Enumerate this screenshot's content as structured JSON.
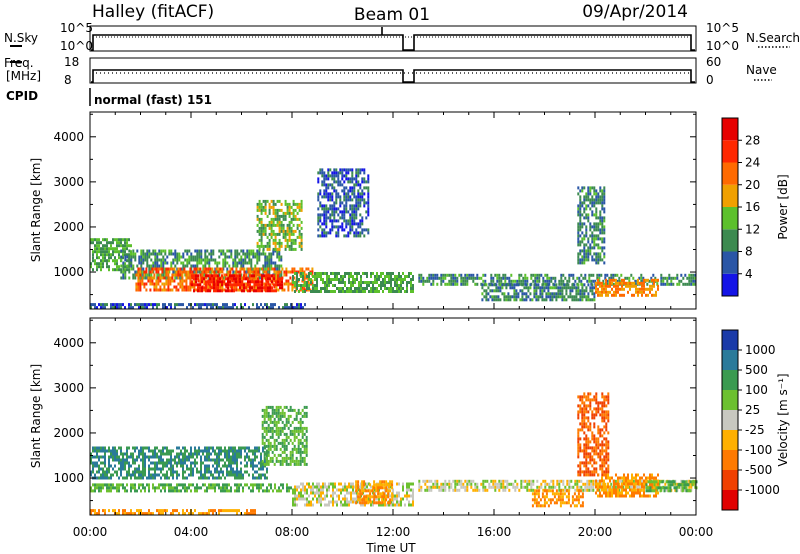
{
  "header": {
    "station": "Halley (fitACF)",
    "beam": "Beam 01",
    "date": "09/Apr/2014"
  },
  "noise_panel": {
    "left_label": "N.Sky",
    "right_label": "N.Search",
    "left_ticks": [
      "10^5",
      "10^0"
    ],
    "right_ticks": [
      "10^5",
      "10^0"
    ]
  },
  "freq_panel": {
    "left_label_1": "Freq.",
    "left_label_2": "[MHz]",
    "right_label": "Nave",
    "left_ticks": [
      "18",
      "8"
    ],
    "right_ticks": [
      "60",
      "0"
    ]
  },
  "cpid": {
    "label": "CPID",
    "program": "normal (fast) 151"
  },
  "x_axis": {
    "label": "Time UT",
    "ticks": [
      "00:00",
      "04:00",
      "08:00",
      "12:00",
      "16:00",
      "20:00",
      "00:00"
    ]
  },
  "power_colorbar": {
    "label": "Power [dB]",
    "ticks": [
      "4",
      "8",
      "12",
      "16",
      "20",
      "24",
      "28"
    ],
    "colors": [
      "#1414e6",
      "#2a56a6",
      "#3c8a50",
      "#5cc02c",
      "#f0a000",
      "#ff6a00",
      "#ff2800",
      "#e60000"
    ]
  },
  "velocity_colorbar": {
    "label": "Velocity [m s⁻¹]",
    "ticks": [
      "1000",
      "500",
      "100",
      "25",
      "-25",
      "-100",
      "-500",
      "-1000"
    ],
    "colors": [
      "#1a3aa8",
      "#2a7a9a",
      "#3a9a50",
      "#6cc030",
      "#c8c8c0",
      "#ffb000",
      "#ff7a00",
      "#f04000",
      "#e00000"
    ]
  },
  "chart_data": {
    "type": "heatmap",
    "panels": [
      {
        "name": "power",
        "ylabel": "Slant Range [km]",
        "yticks": [
          1000,
          2000,
          3000,
          4000
        ],
        "ylim": [
          180,
          4550
        ],
        "xlim_hours": [
          0,
          24
        ],
        "unit": "dB",
        "blobs": [
          {
            "t0": 0.0,
            "t1": 8.6,
            "r0": 200,
            "r1": 310,
            "v": 6
          },
          {
            "t0": 0.0,
            "t1": 1.6,
            "r0": 1050,
            "r1": 1750,
            "v": 12
          },
          {
            "t0": 1.2,
            "t1": 7.6,
            "r0": 880,
            "r1": 1500,
            "v": 10
          },
          {
            "t0": 1.8,
            "t1": 8.8,
            "r0": 580,
            "r1": 1100,
            "v": 22
          },
          {
            "t0": 4.0,
            "t1": 7.6,
            "r0": 600,
            "r1": 950,
            "v": 28
          },
          {
            "t0": 6.6,
            "t1": 8.4,
            "r0": 1500,
            "r1": 2600,
            "v": 14
          },
          {
            "t0": 8.0,
            "t1": 12.8,
            "r0": 550,
            "r1": 1000,
            "v": 12
          },
          {
            "t0": 9.0,
            "t1": 11.0,
            "r0": 1800,
            "r1": 3300,
            "v": 6
          },
          {
            "t0": 13.0,
            "t1": 24.0,
            "r0": 740,
            "r1": 960,
            "v": 10
          },
          {
            "t0": 15.5,
            "t1": 20.0,
            "r0": 400,
            "r1": 750,
            "v": 9
          },
          {
            "t0": 19.3,
            "t1": 20.4,
            "r0": 1200,
            "r1": 2900,
            "v": 9
          },
          {
            "t0": 20.0,
            "t1": 22.5,
            "r0": 500,
            "r1": 850,
            "v": 20
          }
        ]
      },
      {
        "name": "velocity",
        "ylabel": "Slant Range [km]",
        "yticks": [
          1000,
          2000,
          3000,
          4000
        ],
        "ylim": [
          180,
          4550
        ],
        "xlim_hours": [
          0,
          24
        ],
        "unit": "m/s",
        "blobs": [
          {
            "t0": 0.0,
            "t1": 6.5,
            "r0": 200,
            "r1": 310,
            "v": -100
          },
          {
            "t0": 0.0,
            "t1": 8.0,
            "r0": 720,
            "r1": 880,
            "v": 100
          },
          {
            "t0": 0.0,
            "t1": 7.0,
            "r0": 1000,
            "r1": 1700,
            "v": 500
          },
          {
            "t0": 6.8,
            "t1": 8.6,
            "r0": 1300,
            "r1": 2600,
            "v": 100
          },
          {
            "t0": 8.0,
            "t1": 12.8,
            "r0": 400,
            "r1": 900,
            "v": 0
          },
          {
            "t0": 10.5,
            "t1": 12.0,
            "r0": 450,
            "r1": 950,
            "v": -100
          },
          {
            "t0": 13.0,
            "t1": 24.0,
            "r0": 720,
            "r1": 960,
            "v": 0
          },
          {
            "t0": 17.5,
            "t1": 19.5,
            "r0": 380,
            "r1": 750,
            "v": -100
          },
          {
            "t0": 19.3,
            "t1": 20.5,
            "r0": 1100,
            "r1": 2900,
            "v": -500
          },
          {
            "t0": 20.0,
            "t1": 22.5,
            "r0": 600,
            "r1": 1100,
            "v": -100
          },
          {
            "t0": 22.0,
            "t1": 24.0,
            "r0": 700,
            "r1": 950,
            "v": 100
          }
        ]
      }
    ],
    "data_gap_hours": [
      12.85,
      13.0
    ]
  }
}
